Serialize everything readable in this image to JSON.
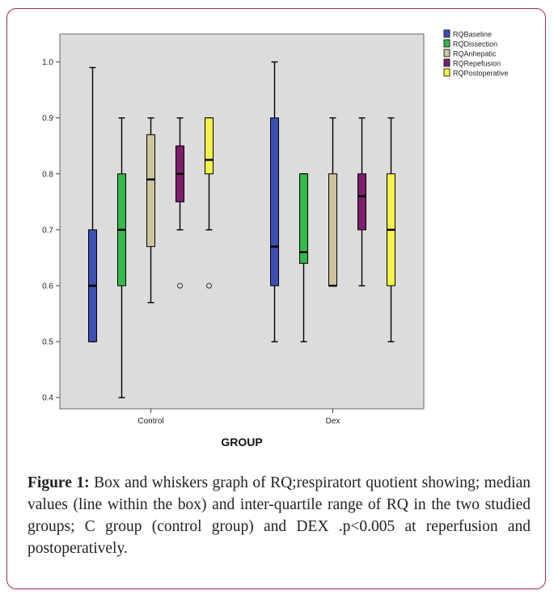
{
  "caption": {
    "label": "Figure 1:",
    "text": " Box and whiskers graph of RQ;respiratort quotient showing; median values (line within the box) and inter-quartile range of RQ in the two studied groups; C group (control group) and DEX .p<0.005 at reperfusion and postoperatively."
  },
  "chart_data": {
    "type": "box",
    "xlabel": "GROUP",
    "ylabel": "",
    "ylim": [
      0.38,
      1.05
    ],
    "yticks": [
      0.4,
      0.5,
      0.6,
      0.7,
      0.8,
      0.9,
      1.0
    ],
    "ytick_labels": [
      "0.4",
      "0.5",
      "0.6",
      "0.7",
      "0.8",
      "0.9",
      "1.0"
    ],
    "categories": [
      "Control",
      "Dex"
    ],
    "legend_position": "top-right",
    "series": [
      {
        "name": "RQBaseline",
        "color": "#3c4fb3",
        "boxes": [
          {
            "min": 0.5,
            "q1": 0.5,
            "median": 0.6,
            "q3": 0.7,
            "max": 0.99,
            "outliers": []
          },
          {
            "min": 0.5,
            "q1": 0.6,
            "median": 0.67,
            "q3": 0.9,
            "max": 1.0,
            "outliers": []
          }
        ]
      },
      {
        "name": "RQDissection",
        "color": "#35b94a",
        "boxes": [
          {
            "min": 0.4,
            "q1": 0.6,
            "median": 0.7,
            "q3": 0.8,
            "max": 0.9,
            "outliers": []
          },
          {
            "min": 0.5,
            "q1": 0.64,
            "median": 0.66,
            "q3": 0.8,
            "max": 0.8,
            "outliers": []
          }
        ]
      },
      {
        "name": "RQAnhepatic",
        "color": "#cdc59c",
        "boxes": [
          {
            "min": 0.57,
            "q1": 0.67,
            "median": 0.79,
            "q3": 0.87,
            "max": 0.9,
            "outliers": []
          },
          {
            "min": 0.6,
            "q1": 0.6,
            "median": 0.6,
            "q3": 0.8,
            "max": 0.9,
            "outliers": []
          }
        ]
      },
      {
        "name": "RQRepefusion",
        "color": "#7b1f6e",
        "boxes": [
          {
            "min": 0.7,
            "q1": 0.75,
            "median": 0.8,
            "q3": 0.85,
            "max": 0.9,
            "outliers": [
              0.6
            ]
          },
          {
            "min": 0.6,
            "q1": 0.7,
            "median": 0.76,
            "q3": 0.8,
            "max": 0.9,
            "outliers": []
          }
        ]
      },
      {
        "name": "RQPostoperative",
        "color": "#f5f24c",
        "boxes": [
          {
            "min": 0.7,
            "q1": 0.8,
            "median": 0.825,
            "q3": 0.9,
            "max": 0.9,
            "outliers": [
              0.6
            ]
          },
          {
            "min": 0.5,
            "q1": 0.6,
            "median": 0.7,
            "q3": 0.8,
            "max": 0.9,
            "outliers": []
          }
        ]
      }
    ]
  }
}
